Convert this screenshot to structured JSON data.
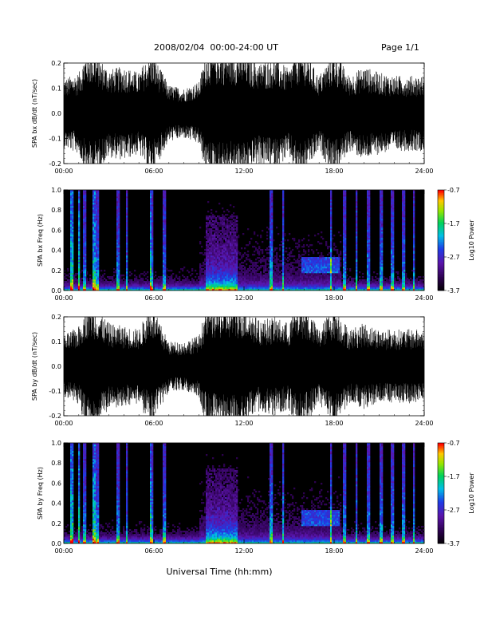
{
  "header": {
    "date_range": "2008/02/04  00:00-24:00 UT",
    "page": "Page 1/1"
  },
  "chart_data": [
    {
      "type": "line",
      "panel": "bx_waveform",
      "ylabel": "SPA bx dB/dt (nT/sec)",
      "ylim": [
        -0.2,
        0.2
      ],
      "yticks": [
        "0.2",
        "0.1",
        "0.0",
        "-0.1",
        "-0.2"
      ],
      "x_ticks": [
        "00:00",
        "06:00",
        "12:00",
        "18:00",
        "24:00"
      ],
      "x_hours": [
        0,
        1,
        1.5,
        2,
        3,
        4,
        5,
        5.8,
        7,
        8,
        9,
        9.5,
        10,
        11,
        12,
        13,
        14,
        15,
        15.5,
        16,
        17,
        18,
        19,
        20,
        21,
        22,
        23,
        24
      ],
      "amplitude_envelope": [
        0.11,
        0.13,
        0.2,
        0.2,
        0.14,
        0.15,
        0.13,
        0.2,
        0.09,
        0.08,
        0.1,
        0.2,
        0.2,
        0.2,
        0.2,
        0.16,
        0.18,
        0.14,
        0.2,
        0.2,
        0.12,
        0.2,
        0.12,
        0.15,
        0.13,
        0.12,
        0.12,
        0.12
      ]
    },
    {
      "type": "heatmap",
      "panel": "bx_spectrogram",
      "ylabel": "SPA bx Freq (Hz)",
      "ylim": [
        0.0,
        1.0
      ],
      "yticks": [
        "1.0",
        "0.8",
        "0.6",
        "0.4",
        "0.2",
        "0.0"
      ],
      "x_ticks": [
        "00:00",
        "06:00",
        "12:00",
        "18:00",
        "24:00"
      ],
      "colorbar_label": "Log10 Power",
      "colorbar_ticks": [
        "-0.7",
        "-1.7",
        "-2.7",
        "-3.7"
      ],
      "color_range": [
        -3.7,
        -0.7
      ]
    },
    {
      "type": "line",
      "panel": "by_waveform",
      "ylabel": "SPA by dB/dt (nT/sec)",
      "ylim": [
        -0.2,
        0.2
      ],
      "yticks": [
        "0.2",
        "0.1",
        "0.0",
        "-0.1",
        "-0.2"
      ],
      "x_ticks": [
        "00:00",
        "06:00",
        "12:00",
        "18:00",
        "24:00"
      ],
      "x_hours": [
        0,
        1,
        1.5,
        2,
        3,
        4,
        5,
        5.8,
        7,
        8,
        9,
        9.5,
        10,
        11,
        12,
        13,
        14,
        15,
        15.5,
        16,
        17,
        18,
        19,
        20,
        21,
        22,
        23,
        24
      ],
      "amplitude_envelope": [
        0.1,
        0.13,
        0.2,
        0.2,
        0.14,
        0.13,
        0.12,
        0.2,
        0.08,
        0.08,
        0.1,
        0.2,
        0.2,
        0.2,
        0.2,
        0.15,
        0.16,
        0.14,
        0.2,
        0.2,
        0.12,
        0.2,
        0.12,
        0.14,
        0.12,
        0.12,
        0.12,
        0.12
      ]
    },
    {
      "type": "heatmap",
      "panel": "by_spectrogram",
      "ylabel": "SPA by Freq (Hz)",
      "ylim": [
        0.0,
        1.0
      ],
      "yticks": [
        "1.0",
        "0.8",
        "0.6",
        "0.4",
        "0.2",
        "0.0"
      ],
      "x_ticks": [
        "00:00",
        "06:00",
        "12:00",
        "18:00",
        "24:00"
      ],
      "colorbar_label": "Log10 Power",
      "colorbar_ticks": [
        "-0.7",
        "-1.7",
        "-2.7",
        "-3.7"
      ],
      "color_range": [
        -3.7,
        -0.7
      ]
    }
  ],
  "spectral_features": {
    "bursts_hours": [
      1.4,
      2.2,
      3.6,
      4.2,
      5.9,
      6.7,
      13.8,
      14.6,
      17.8,
      18.7,
      19.5,
      20.3,
      21.1,
      21.9,
      22.6,
      23.3
    ],
    "strong_bursts_hours": [
      0.5,
      1.0,
      2.0,
      5.8
    ],
    "active_interval_hours": [
      9.5,
      11.6
    ],
    "mid_band_interval_hours": [
      15.8,
      18.4
    ]
  },
  "xaxis_title": "Universal Time (hh:mm)"
}
